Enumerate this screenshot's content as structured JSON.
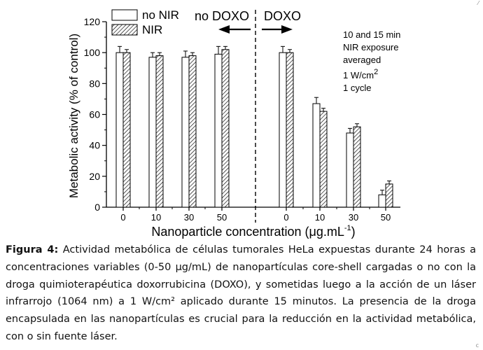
{
  "chart_data": {
    "type": "bar",
    "groups": [
      {
        "label": "no DOXO",
        "categories": [
          "0",
          "10",
          "30",
          "50"
        ]
      },
      {
        "label": "DOXO",
        "categories": [
          "0",
          "10",
          "30",
          "50"
        ]
      }
    ],
    "series": [
      {
        "name": "no NIR",
        "pattern": "solid-white",
        "values": [
          100,
          97,
          97,
          99,
          100,
          67,
          48,
          8
        ],
        "errors": [
          4,
          3,
          4,
          5,
          4,
          4,
          3,
          3
        ]
      },
      {
        "name": "NIR",
        "pattern": "hatched",
        "values": [
          100,
          98,
          98,
          102,
          100,
          62,
          52,
          15
        ],
        "errors": [
          2,
          2,
          2,
          2,
          2,
          2,
          2,
          2
        ]
      }
    ],
    "xlabel": "Nanoparticle concentration (μg.mL",
    "xlabel_sup": "-1",
    "xlabel_end": ")",
    "ylabel": "Metabolic activity (% of control)",
    "ylim": [
      0,
      120
    ],
    "yticks": [
      0,
      20,
      40,
      60,
      80,
      100,
      120
    ],
    "annotation": {
      "line1": "10 and 15 min",
      "line2": "NIR exposure",
      "line3": "averaged",
      "line4": "1 W/cm",
      "line4_sup": "2",
      "line5": "1 cycle"
    },
    "grid": false,
    "legend_position": "top-left"
  },
  "caption": {
    "label": "Figura 4:",
    "text": " Actividad metabólica de células tumorales HeLa expuestas durante 24 horas a concentraciones variables (0-50 µg/mL) de nanopartículas core-shell cargadas o no con la droga quimioterapéutica doxorrubicina (DOXO), y sometidas luego a la acción de un láser infrarrojo (1064 nm) a 1 W/cm² aplicado durante 15 minutos. La presencia de la droga encapsulada en las nanopartículas es crucial para la reducción en la actividad metabólica, con o sin fuente láser."
  },
  "edge_marks": {
    "top_right": "⁄",
    "bottom_right": "c"
  }
}
